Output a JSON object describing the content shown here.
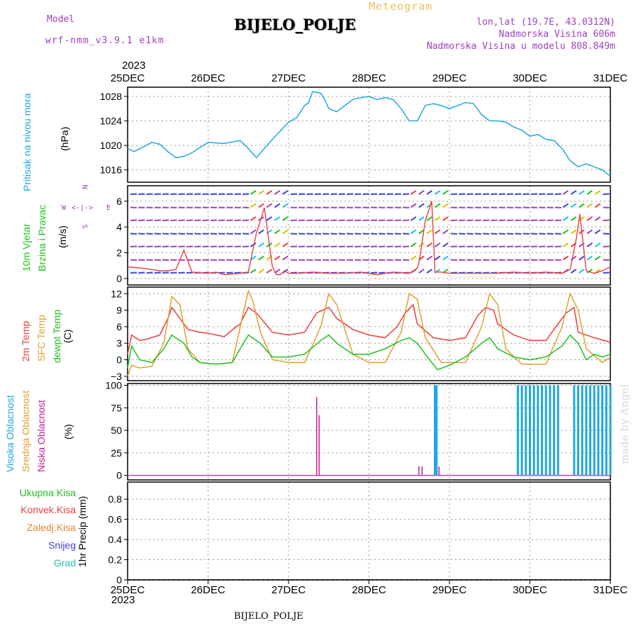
{
  "header": {
    "model_label": "Model",
    "model_name": "wrf-nmm_v3.9.1 e1km",
    "title": "BIJELO_POLJE",
    "subtitle": "Meteogram",
    "lonlat": "lon,lat (19.7E, 43.0312N)",
    "altitude": "Nadmorska Visina 606m",
    "model_altitude": "Nadmorska Visina u modelu 808.849m",
    "year": "2023",
    "footer_station": "BIJELO_POLJE",
    "watermark": "made by Angel"
  },
  "colors": {
    "pressure": "#20a8e0",
    "wind_title": "#20c020",
    "t2m": "#e84040",
    "sfc": "#e0a030",
    "dewpt": "#20c020",
    "cloud_high": "#20a8e0",
    "cloud_mid": "#e0a030",
    "cloud_low": "#c020a0",
    "purple": "#a040c0"
  },
  "chart_data": [
    {
      "id": "pressure",
      "type": "line",
      "ylabel": "Pritisak na nivou mora",
      "unit": "(hPa)",
      "x_ticks": [
        "25DEC",
        "26DEC",
        "27DEC",
        "28DEC",
        "29DEC",
        "30DEC",
        "31DEC"
      ],
      "ylim": [
        1014,
        1029.5
      ],
      "y_ticks": [
        1016,
        1020,
        1024,
        1028
      ],
      "grid": true,
      "series": [
        {
          "x": [
            0,
            0.08,
            0.2,
            0.3,
            0.4,
            0.5,
            0.6,
            0.7,
            0.8,
            1.0,
            1.2,
            1.4,
            1.5,
            1.6,
            1.8,
            2.0,
            2.1,
            2.2,
            2.25,
            2.3,
            2.4,
            2.45,
            2.5,
            2.6,
            2.7,
            2.8,
            2.9,
            3.0,
            3.1,
            3.2,
            3.3,
            3.4,
            3.5,
            3.6,
            3.7,
            3.8,
            3.9,
            4.0,
            4.1,
            4.2,
            4.3,
            4.4,
            4.5,
            4.6,
            4.7,
            4.8,
            4.9,
            5.0,
            5.1,
            5.2,
            5.3,
            5.4,
            5.5,
            5.6,
            5.7,
            5.8,
            5.9,
            6.0
          ],
          "values": [
            1019.5,
            1019,
            1019.8,
            1020.5,
            1020.2,
            1019,
            1018,
            1018.2,
            1018.8,
            1020.5,
            1020.3,
            1020.8,
            1019.5,
            1018,
            1021,
            1023.8,
            1024.5,
            1026.5,
            1027,
            1028.8,
            1028.5,
            1027.5,
            1026,
            1025.5,
            1026.5,
            1027.5,
            1027.8,
            1028,
            1027.5,
            1027.8,
            1027.5,
            1026,
            1024,
            1024,
            1026.5,
            1026.8,
            1026.5,
            1026,
            1026.5,
            1027,
            1026.8,
            1025,
            1024,
            1024,
            1023.8,
            1023,
            1022.5,
            1021.5,
            1021.8,
            1021,
            1020.8,
            1019.5,
            1017.5,
            1016.5,
            1017,
            1016.5,
            1016,
            1015
          ]
        }
      ]
    },
    {
      "id": "wind",
      "type": "line",
      "ylabel_line1": "10m Vjetar",
      "ylabel_line2": "Brzina i Pravac",
      "unit": "(m/s)",
      "compass_labels": [
        "N",
        "S",
        "W",
        "E"
      ],
      "ylim": [
        -0.5,
        7.2
      ],
      "y_ticks": [
        0,
        2,
        4,
        6
      ],
      "series": [
        {
          "name": "speed",
          "x": [
            0,
            0.2,
            0.4,
            0.5,
            0.6,
            0.7,
            0.8,
            1.0,
            1.1,
            1.2,
            1.4,
            1.5,
            1.6,
            1.7,
            1.75,
            1.8,
            1.85,
            1.9,
            1.95,
            2.0,
            2.1,
            2.3,
            2.5,
            2.7,
            2.9,
            3.1,
            3.3,
            3.5,
            3.6,
            3.62,
            3.7,
            3.78,
            3.82,
            3.9,
            4.0,
            4.2,
            4.4,
            4.6,
            4.8,
            5.0,
            5.2,
            5.4,
            5.5,
            5.58,
            5.62,
            5.7,
            5.8,
            5.9,
            6.0
          ],
          "values": [
            0.9,
            0.8,
            0.6,
            0.6,
            0.7,
            2.2,
            0.5,
            0.4,
            0.5,
            0.3,
            0.4,
            0.5,
            3.5,
            5.5,
            3.2,
            0.9,
            0.3,
            0.3,
            0.6,
            0.4,
            0.4,
            0.5,
            0.4,
            0.4,
            0.5,
            0.3,
            0.5,
            0.4,
            0.8,
            1.2,
            4.5,
            6,
            0.5,
            0.5,
            0.4,
            0.4,
            0.4,
            0.4,
            0.5,
            0.4,
            0.5,
            0.4,
            0.7,
            3.2,
            5,
            0.6,
            0.4,
            0.6,
            0.9
          ]
        }
      ]
    },
    {
      "id": "temperature",
      "type": "line",
      "ylabels": [
        "2m Temp",
        "SFC Temp",
        "dewpt Temp"
      ],
      "unit": "(C)",
      "ylim": [
        -3.8,
        13.2
      ],
      "y_ticks": [
        -3,
        0,
        3,
        6,
        9,
        12
      ],
      "series": [
        {
          "name": "2m Temp",
          "x": [
            0,
            0.05,
            0.15,
            0.25,
            0.4,
            0.5,
            0.55,
            0.75,
            0.9,
            1.0,
            1.2,
            1.35,
            1.4,
            1.5,
            1.6,
            1.8,
            2.0,
            2.2,
            2.35,
            2.5,
            2.6,
            2.8,
            3.0,
            3.2,
            3.35,
            3.45,
            3.55,
            3.6,
            3.8,
            4.0,
            4.2,
            4.35,
            4.45,
            4.55,
            4.6,
            4.8,
            5.0,
            5.2,
            5.35,
            5.45,
            5.55,
            5.6,
            5.8,
            6.0
          ],
          "values": [
            1,
            4.5,
            3.5,
            3.8,
            4.5,
            7.5,
            9.5,
            5.5,
            5,
            4.8,
            4.2,
            6,
            6.5,
            9.5,
            8.5,
            5,
            4.5,
            5,
            8.5,
            9.5,
            7.5,
            5.5,
            4.5,
            4,
            6,
            8.5,
            10,
            6.5,
            4,
            3.5,
            4,
            8,
            9.5,
            9,
            6.5,
            4.5,
            3.5,
            3.5,
            6.5,
            8.5,
            9.5,
            5,
            4,
            3.2
          ]
        },
        {
          "name": "SFC Temp",
          "x": [
            0,
            0.05,
            0.15,
            0.3,
            0.45,
            0.55,
            0.65,
            0.75,
            0.9,
            1.1,
            1.3,
            1.4,
            1.5,
            1.55,
            1.65,
            1.8,
            2.0,
            2.2,
            2.4,
            2.5,
            2.6,
            2.8,
            3.0,
            3.2,
            3.4,
            3.5,
            3.6,
            3.7,
            3.9,
            4.2,
            4.4,
            4.5,
            4.6,
            4.7,
            4.9,
            5.2,
            5.4,
            5.5,
            5.6,
            5.7,
            5.9,
            6.0
          ],
          "values": [
            -3,
            -1,
            -1.5,
            -1.2,
            3,
            11.5,
            10,
            2,
            -0.5,
            -0.8,
            -0.5,
            6,
            12.5,
            11,
            5,
            0,
            -0.5,
            -0.5,
            6,
            12,
            10,
            1,
            -0.5,
            -0.5,
            5,
            12,
            11,
            4,
            -0.5,
            -0.5,
            6,
            12,
            10,
            2,
            -0.8,
            -0.8,
            6,
            12,
            9,
            2,
            -0.5,
            0.5
          ]
        },
        {
          "name": "dewpt Temp",
          "x": [
            0,
            0.05,
            0.15,
            0.3,
            0.45,
            0.55,
            0.7,
            0.8,
            0.9,
            1.1,
            1.3,
            1.4,
            1.5,
            1.55,
            1.65,
            1.8,
            2.0,
            2.2,
            2.4,
            2.5,
            2.6,
            2.8,
            3.0,
            3.2,
            3.4,
            3.5,
            3.6,
            3.7,
            3.85,
            4.0,
            4.2,
            4.4,
            4.5,
            4.6,
            4.8,
            5.0,
            5.2,
            5.4,
            5.5,
            5.6,
            5.7,
            5.8,
            5.9,
            6.0
          ],
          "values": [
            -1.5,
            2.5,
            0,
            -0.5,
            2,
            4.5,
            3,
            0.5,
            -0.5,
            -0.8,
            -0.5,
            2,
            4.5,
            4,
            3,
            0.5,
            0.5,
            1,
            3.5,
            4.5,
            3,
            1,
            1,
            2,
            3.5,
            4,
            3,
            1,
            -1.8,
            -1,
            0.5,
            3,
            4,
            2,
            0.5,
            0,
            0.5,
            2.5,
            4.5,
            3,
            0,
            1,
            0.5,
            1
          ]
        }
      ]
    },
    {
      "id": "cloud",
      "type": "bar",
      "ylabels": [
        "Visoka Oblacnost",
        "Srednja Oblacnost",
        "Niska Oblacnost"
      ],
      "unit": "(%)",
      "ylim": [
        -5,
        102
      ],
      "y_ticks": [
        0,
        25,
        50,
        75,
        100
      ],
      "series": [
        {
          "name": "Niska Oblacnost",
          "x": [
            2.35,
            2.38,
            3.62,
            3.66,
            3.87
          ],
          "values": [
            87,
            67,
            10,
            10,
            10
          ]
        },
        {
          "name": "Srednja Oblacnost",
          "x": [
            3.84,
            5.0,
            5.3,
            5.7
          ],
          "values": [
            58,
            30,
            98,
            98
          ]
        },
        {
          "name": "Visoka Oblacnost",
          "x": [
            3.82,
            3.84,
            4.85,
            4.9,
            4.95,
            5.0,
            5.05,
            5.1,
            5.15,
            5.2,
            5.25,
            5.3,
            5.35,
            5.55,
            5.6,
            5.65,
            5.7,
            5.75,
            5.8,
            5.85,
            5.9,
            5.95,
            6.0
          ],
          "values": [
            100,
            100,
            100,
            100,
            100,
            100,
            100,
            100,
            100,
            100,
            100,
            100,
            100,
            100,
            100,
            100,
            100,
            100,
            100,
            100,
            100,
            100,
            100
          ]
        }
      ]
    },
    {
      "id": "precip",
      "type": "bar",
      "legend": [
        "Ukupna Kisa",
        "Konvek.Kisa",
        "Zaledj.Kisa",
        "Snijeg",
        "Grad"
      ],
      "ylabel": "1hr Precip (mm)",
      "ylim": [
        0,
        0.97
      ],
      "y_ticks": [
        0,
        0.2,
        0.4,
        0.6,
        0.8
      ],
      "y_tick_labels": [
        "0",
        "0.2",
        "0.4",
        "0.6",
        "0.8"
      ],
      "series": []
    }
  ]
}
